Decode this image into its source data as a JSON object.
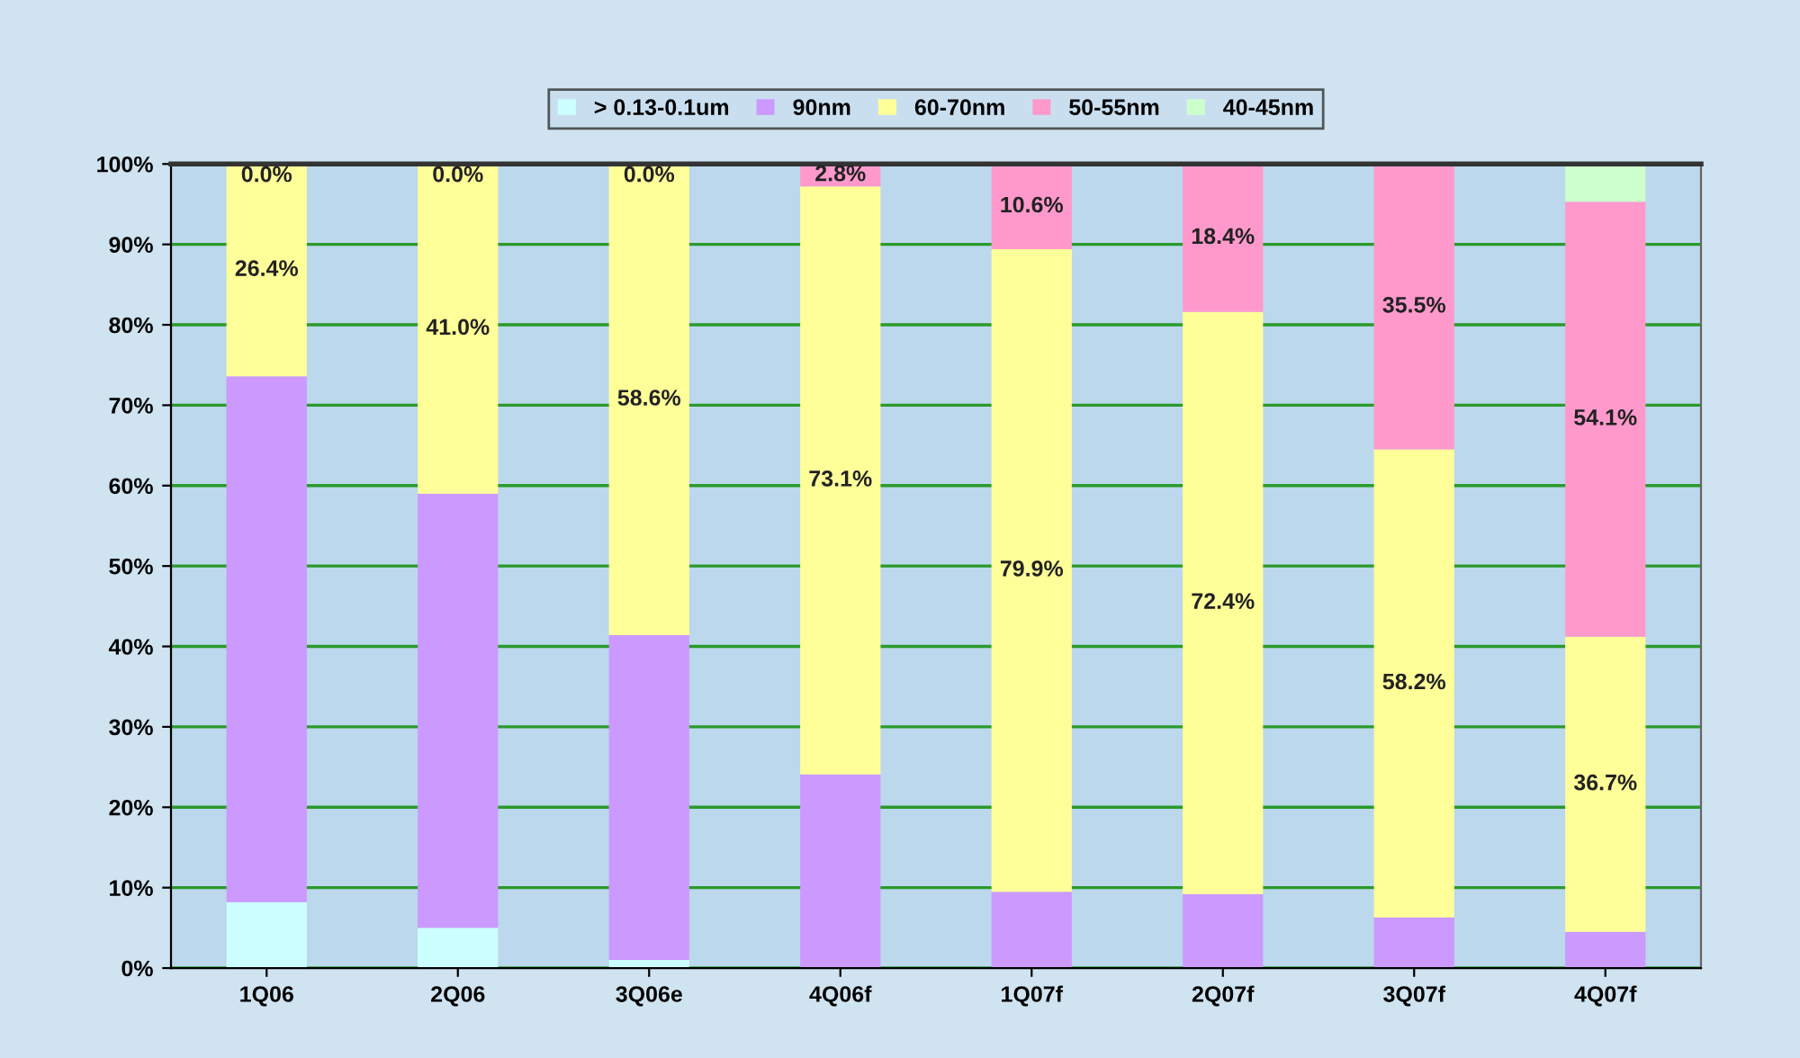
{
  "chart_data": {
    "type": "bar",
    "stacked": true,
    "categories": [
      "1Q06",
      "2Q06",
      "3Q06e",
      "4Q06f",
      "1Q07f",
      "2Q07f",
      "3Q07f",
      "4Q07f"
    ],
    "series": [
      {
        "name": "> 0.13-0.1um",
        "color": "#ccffff",
        "values": [
          8.2,
          5.0,
          1.0,
          0.0,
          0.0,
          0.0,
          0.0,
          0.0
        ]
      },
      {
        "name": "90nm",
        "color": "#cc99ff",
        "values": [
          65.4,
          54.0,
          40.4,
          24.1,
          9.5,
          9.2,
          6.3,
          4.5
        ]
      },
      {
        "name": "60-70nm",
        "color": "#ffff99",
        "values": [
          26.4,
          41.0,
          58.6,
          73.1,
          79.9,
          72.4,
          58.2,
          36.7
        ],
        "value_labels": [
          "26.4%",
          "41.0%",
          "58.6%",
          "73.1%",
          "79.9%",
          "72.4%",
          "58.2%",
          "36.7%"
        ]
      },
      {
        "name": "50-55nm",
        "color": "#ff99cc",
        "values": [
          0.0,
          0.0,
          0.0,
          2.8,
          10.6,
          18.4,
          35.5,
          54.1
        ],
        "value_labels": [
          "0.0%",
          "0.0%",
          "0.0%",
          "2.8%",
          "10.6%",
          "18.4%",
          "35.5%",
          "54.1%"
        ]
      },
      {
        "name": "40-45nm",
        "color": "#ccffcc",
        "values": [
          0.0,
          0.0,
          0.0,
          0.0,
          0.0,
          0.0,
          0.0,
          4.7
        ]
      }
    ],
    "ylim": [
      0,
      100
    ],
    "yticks": [
      {
        "value": 0,
        "label": "0%"
      },
      {
        "value": 10,
        "label": "10%"
      },
      {
        "value": 20,
        "label": "20%"
      },
      {
        "value": 30,
        "label": "30%"
      },
      {
        "value": 40,
        "label": "40%"
      },
      {
        "value": 50,
        "label": "50%"
      },
      {
        "value": 60,
        "label": "60%"
      },
      {
        "value": 70,
        "label": "70%"
      },
      {
        "value": 80,
        "label": "80%"
      },
      {
        "value": 90,
        "label": "90%"
      },
      {
        "value": 100,
        "label": "100%"
      }
    ],
    "grid": "y",
    "legend": "top"
  }
}
